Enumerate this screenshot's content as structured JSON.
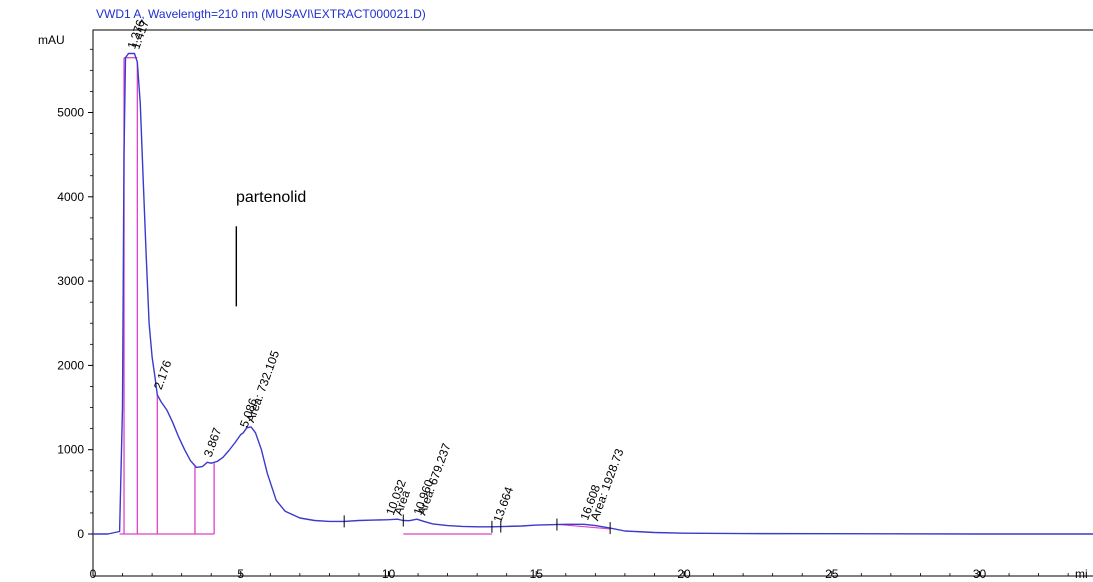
{
  "chart_data": {
    "type": "line",
    "title": "VWD1 A, Wavelength=210 nm (MUSAVI\\EXTRACT000021.D)",
    "ylabel": "mAU",
    "xlabel": "mi",
    "xlim": [
      0,
      34
    ],
    "ylim": [
      -200,
      5900
    ],
    "xticks": [
      0,
      5,
      10,
      15,
      20,
      25,
      30
    ],
    "yticks": [
      0,
      1000,
      2000,
      3000,
      4000,
      5000
    ],
    "colors": {
      "trace": "#3a3acc",
      "baseline": "#e040c8",
      "title": "#1f2fd0"
    },
    "annotation": {
      "text": "partenolid",
      "x": 4.85,
      "y_top": 3650,
      "y_bottom": 2700
    },
    "series": [
      {
        "x": [
          0,
          0.5,
          0.9,
          1.0,
          1.05,
          1.1,
          1.2,
          1.4,
          1.5,
          1.6,
          1.7,
          1.8,
          1.9,
          2.0,
          2.1,
          2.176,
          2.3,
          2.5,
          2.7,
          2.9,
          3.1,
          3.3,
          3.5,
          3.7,
          3.867,
          4.0,
          4.2,
          4.4,
          4.6,
          4.8,
          5.0,
          5.086,
          5.2,
          5.35,
          5.5,
          5.7,
          5.9,
          6.2,
          6.5,
          7.0,
          7.5,
          8.0,
          8.5,
          9.0,
          9.5,
          10.0,
          10.3,
          10.5,
          10.7,
          10.96,
          11.2,
          11.5,
          12.0,
          12.5,
          13.0,
          13.5,
          14.0,
          14.5,
          15.0,
          15.5,
          16.0,
          16.608,
          17.0,
          17.5,
          18.0,
          19.0,
          20.0,
          22.0,
          25.0,
          30.0,
          34.0
        ],
        "y": [
          0,
          0,
          30,
          1500,
          4500,
          5650,
          5700,
          5700,
          5600,
          5100,
          4200,
          3300,
          2500,
          2100,
          1850,
          1650,
          1570,
          1470,
          1320,
          1150,
          1000,
          870,
          790,
          800,
          850,
          840,
          860,
          910,
          990,
          1080,
          1180,
          1200,
          1260,
          1270,
          1200,
          1000,
          720,
          400,
          270,
          190,
          160,
          150,
          150,
          160,
          165,
          170,
          175,
          160,
          158,
          175,
          150,
          120,
          100,
          90,
          85,
          85,
          90,
          95,
          105,
          110,
          115,
          115,
          100,
          70,
          35,
          18,
          10,
          5,
          3,
          0,
          0
        ]
      }
    ],
    "peak_labels": [
      {
        "text": "1.276",
        "x": 1.276,
        "y": 5720
      },
      {
        "text": "1.417",
        "x": 1.417,
        "y": 5720
      },
      {
        "text": "2.176",
        "x": 2.176,
        "y": 1680
      },
      {
        "text": "3.867",
        "x": 3.867,
        "y": 880
      },
      {
        "text": "5.086",
        "x": 5.086,
        "y": 1230
      },
      {
        "text": "Area: 732.105",
        "x": 5.3,
        "y": 1290
      },
      {
        "text": "10.032",
        "x": 10.032,
        "y": 190
      },
      {
        "text": "Area",
        "x": 10.3,
        "y": 190
      },
      {
        "text": "10.960",
        "x": 10.96,
        "y": 190
      },
      {
        "text": "Area: 679.237",
        "x": 11.1,
        "y": 190
      },
      {
        "text": "13.664",
        "x": 13.664,
        "y": 105
      },
      {
        "text": "16.608",
        "x": 16.608,
        "y": 130
      },
      {
        "text": "Area: 1928.73",
        "x": 16.95,
        "y": 125
      }
    ],
    "integration": {
      "drops": [
        {
          "x": 1.05,
          "y": 5650
        },
        {
          "x": 1.5,
          "y": 5600
        },
        {
          "x": 2.176,
          "y": 1650
        },
        {
          "x": 3.45,
          "y": 800
        },
        {
          "x": 4.1,
          "y": 840
        }
      ],
      "baseline_segments": [
        {
          "x1": 0.9,
          "y1": 0,
          "x2": 4.1,
          "y2": 0
        },
        {
          "x1": 10.5,
          "y1": 0,
          "x2": 13.5,
          "y2": 0
        }
      ],
      "event_ticks": [
        8.5,
        10.5,
        13.5,
        13.8,
        15.7,
        17.5
      ]
    }
  }
}
